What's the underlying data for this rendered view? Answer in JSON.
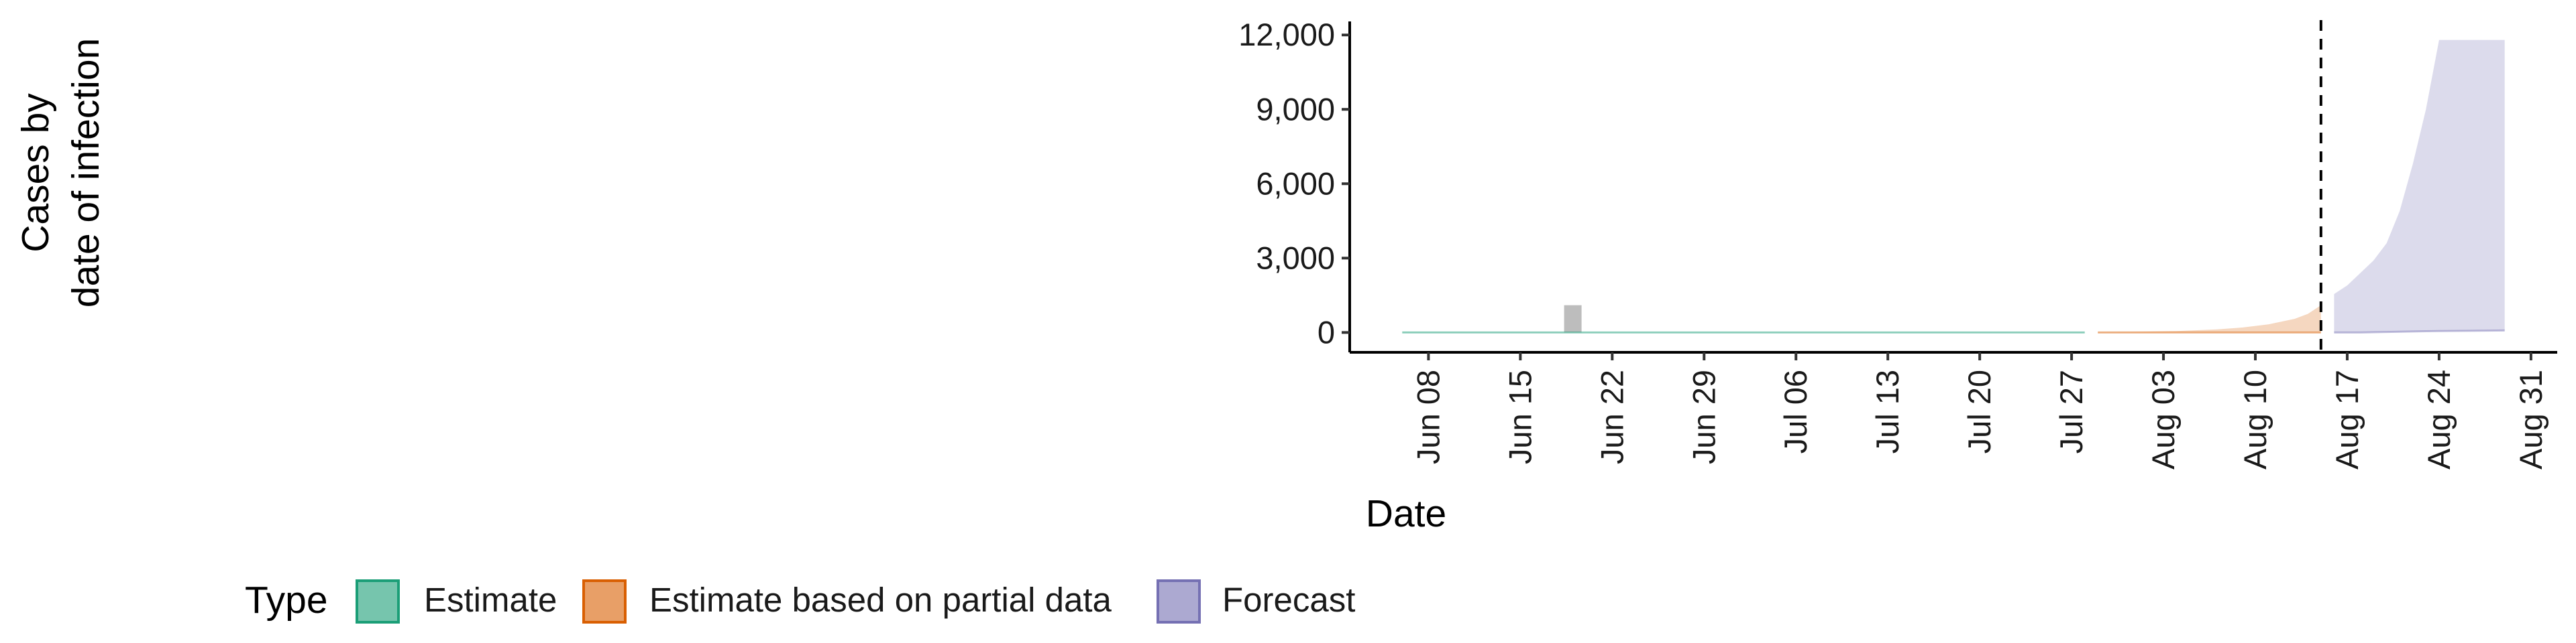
{
  "chart_data": {
    "type": "area",
    "title": "",
    "xlabel": "Date",
    "ylabel_lines": [
      "Cases by",
      "date of infection"
    ],
    "ylim": [
      -800,
      12600
    ],
    "y_ticks": [
      {
        "value": 0,
        "label": "0"
      },
      {
        "value": 3000,
        "label": "3,000"
      },
      {
        "value": 6000,
        "label": "6,000"
      },
      {
        "value": 9000,
        "label": "9,000"
      },
      {
        "value": 12000,
        "label": "12,000"
      }
    ],
    "xlim": [
      "2020-06-02",
      "2020-09-02"
    ],
    "x_ticks": [
      {
        "date": "2020-06-08",
        "label": "Jun 08"
      },
      {
        "date": "2020-06-15",
        "label": "Jun 15"
      },
      {
        "date": "2020-06-22",
        "label": "Jun 22"
      },
      {
        "date": "2020-06-29",
        "label": "Jun 29"
      },
      {
        "date": "2020-07-06",
        "label": "Jul 06"
      },
      {
        "date": "2020-07-13",
        "label": "Jul 13"
      },
      {
        "date": "2020-07-20",
        "label": "Jul 20"
      },
      {
        "date": "2020-07-27",
        "label": "Jul 27"
      },
      {
        "date": "2020-08-03",
        "label": "Aug 03"
      },
      {
        "date": "2020-08-10",
        "label": "Aug 10"
      },
      {
        "date": "2020-08-17",
        "label": "Aug 17"
      },
      {
        "date": "2020-08-24",
        "label": "Aug 24"
      },
      {
        "date": "2020-08-31",
        "label": "Aug 31"
      }
    ],
    "observed_cases": [
      {
        "date": "2020-06-19",
        "value": 1100
      }
    ],
    "forecast_date_line": "2020-08-15",
    "grid": false,
    "legend": {
      "title": "Type",
      "position": "bottom",
      "items": [
        {
          "label": "Estimate",
          "fill": "#1b9e77",
          "stroke": "#1b9e77"
        },
        {
          "label": "Estimate based on partial data",
          "fill": "#d95f02",
          "stroke": "#d95f02"
        },
        {
          "label": "Forecast",
          "fill": "#7570b3",
          "stroke": "#7570b3"
        }
      ]
    },
    "series": [
      {
        "name": "Estimate",
        "color": "#1b9e77",
        "points": [
          {
            "date": "2020-06-06",
            "lower": 0,
            "upper": 30
          },
          {
            "date": "2020-06-15",
            "lower": 0,
            "upper": 25
          },
          {
            "date": "2020-06-25",
            "lower": 0,
            "upper": 20
          },
          {
            "date": "2020-07-05",
            "lower": 0,
            "upper": 20
          },
          {
            "date": "2020-07-15",
            "lower": 0,
            "upper": 20
          },
          {
            "date": "2020-07-28",
            "lower": 0,
            "upper": 25
          }
        ]
      },
      {
        "name": "Estimate based on partial data",
        "color": "#d95f02",
        "points": [
          {
            "date": "2020-07-29",
            "lower": 0,
            "upper": 20
          },
          {
            "date": "2020-08-01",
            "lower": 0,
            "upper": 30
          },
          {
            "date": "2020-08-04",
            "lower": 0,
            "upper": 60
          },
          {
            "date": "2020-08-07",
            "lower": 0,
            "upper": 120
          },
          {
            "date": "2020-08-09",
            "lower": 0,
            "upper": 200
          },
          {
            "date": "2020-08-11",
            "lower": 0,
            "upper": 330
          },
          {
            "date": "2020-08-13",
            "lower": 0,
            "upper": 550
          },
          {
            "date": "2020-08-14",
            "lower": 0,
            "upper": 750
          },
          {
            "date": "2020-08-15",
            "lower": 0,
            "upper": 1100
          }
        ]
      },
      {
        "name": "Forecast",
        "color": "#7570b3",
        "points": [
          {
            "date": "2020-08-16",
            "lower": 0,
            "upper": 1550
          },
          {
            "date": "2020-08-17",
            "lower": 0,
            "upper": 1900
          },
          {
            "date": "2020-08-18",
            "lower": 0,
            "upper": 2400
          },
          {
            "date": "2020-08-19",
            "lower": 10,
            "upper": 2900
          },
          {
            "date": "2020-08-20",
            "lower": 20,
            "upper": 3600
          },
          {
            "date": "2020-08-21",
            "lower": 30,
            "upper": 4900
          },
          {
            "date": "2020-08-22",
            "lower": 40,
            "upper": 6800
          },
          {
            "date": "2020-08-23",
            "lower": 50,
            "upper": 9000
          },
          {
            "date": "2020-08-24",
            "lower": 60,
            "upper": 11800
          },
          {
            "date": "2020-08-27",
            "lower": 70,
            "upper": 11800
          },
          {
            "date": "2020-08-29",
            "lower": 80,
            "upper": 11800
          }
        ]
      }
    ]
  }
}
